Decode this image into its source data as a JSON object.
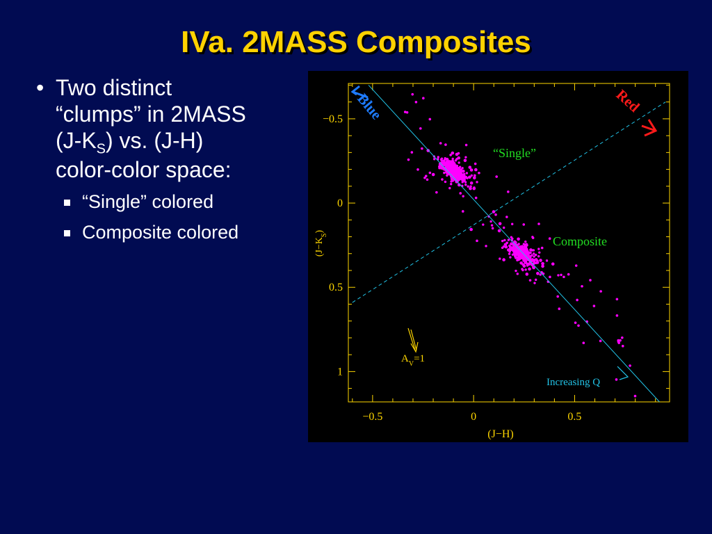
{
  "slide": {
    "title": "IVa. 2MASS Composites",
    "bullet_main": [
      "Two distinct",
      "“clumps” in 2MASS",
      "(J-K",
      "S",
      ") vs. (J-H)",
      "color-color space:"
    ],
    "sub_bullets": [
      "“Single” colored",
      "Composite colored"
    ]
  },
  "chart_data": {
    "type": "scatter",
    "xlabel": "(J−H)",
    "ylabel_parts": [
      "(J−K",
      "S",
      ")"
    ],
    "xlim": [
      -0.62,
      0.97
    ],
    "ylim": [
      1.18,
      -0.71
    ],
    "y_inverted": true,
    "x_ticks": [
      -0.5,
      0,
      0.5
    ],
    "x_tick_labels": [
      "−0.5",
      "0",
      "0.5"
    ],
    "y_ticks": [
      -0.5,
      0,
      0.5,
      1
    ],
    "y_tick_labels": [
      "−0.5",
      "0",
      "0.5",
      "1"
    ],
    "point_color": "#ff00ff",
    "axis_color": "#ffd700",
    "line_color": "#22c4e8",
    "axis_line": {
      "from": [
        -0.52,
        -0.7
      ],
      "to": [
        0.92,
        1.18
      ],
      "style": "solid"
    },
    "divider_line": {
      "from": [
        -0.6,
        0.59
      ],
      "to": [
        0.95,
        -0.6
      ],
      "style": "dashed"
    },
    "clusters": [
      {
        "name": "“Single”",
        "center": [
          -0.1,
          -0.19
        ],
        "spread": [
          0.055,
          0.06
        ],
        "n": 380
      },
      {
        "name": "Composite",
        "center": [
          0.24,
          0.3
        ],
        "spread": [
          0.07,
          0.07
        ],
        "n": 300
      }
    ],
    "annotations": {
      "blue": "Blue",
      "blue_color": "#1e7bff",
      "red": "Red",
      "red_color": "#ff1a1a",
      "single": "“Single”",
      "composite": "Composite",
      "label_color": "#22dd22",
      "av": "A",
      "av_sub": "V",
      "av_tail": "=1",
      "increasing": "Increasing Q"
    }
  }
}
